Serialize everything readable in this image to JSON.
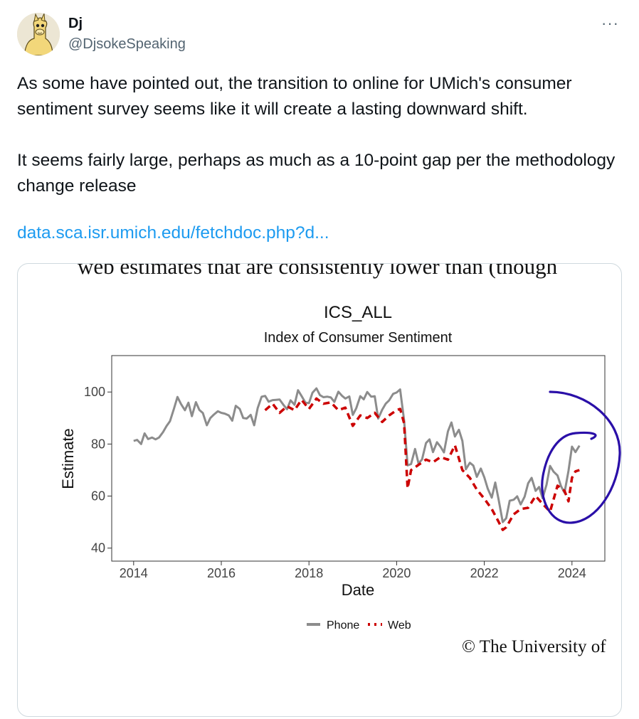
{
  "author": {
    "name": "Dj",
    "handle": "@DjsokeSpeaking"
  },
  "more_label": "···",
  "tweet": {
    "paragraphs": [
      "As some have pointed out, the transition to online for UMich's consumer sentiment survey seems like it will create a lasting downward shift.",
      "It seems fairly large, perhaps as much as a 10-point gap per the methodology change release"
    ],
    "link_text": "data.sca.isr.umich.edu/fetchdoc.php?d..."
  },
  "media": {
    "top_text": "web estimates that are consistently lower than (though",
    "copyright": "© The University of"
  },
  "colors": {
    "phone": "#8c8c8c",
    "web": "#cc0000",
    "annotation": "#2a0fa8",
    "link": "#1d9bf0"
  },
  "chart_data": {
    "type": "line",
    "title": "ICS_ALL",
    "subtitle": "Index of Consumer Sentiment",
    "xlabel": "Date",
    "ylabel": "Estimate",
    "xlim": [
      2013.5,
      2024.75
    ],
    "ylim": [
      35,
      114
    ],
    "xticks": [
      2014,
      2016,
      2018,
      2020,
      2022,
      2024
    ],
    "yticks": [
      40,
      60,
      80,
      100
    ],
    "grid": false,
    "legend": {
      "position": "bottom",
      "entries": [
        "Phone",
        "Web"
      ]
    },
    "series": [
      {
        "name": "Phone",
        "style": "solid",
        "x": [
          2014.0,
          2014.08,
          2014.17,
          2014.25,
          2014.33,
          2014.42,
          2014.5,
          2014.58,
          2014.67,
          2014.75,
          2014.83,
          2014.92,
          2015.0,
          2015.08,
          2015.17,
          2015.25,
          2015.33,
          2015.42,
          2015.5,
          2015.58,
          2015.67,
          2015.75,
          2015.83,
          2015.92,
          2016.0,
          2016.08,
          2016.17,
          2016.25,
          2016.33,
          2016.42,
          2016.5,
          2016.58,
          2016.67,
          2016.75,
          2016.83,
          2016.92,
          2017.0,
          2017.08,
          2017.17,
          2017.25,
          2017.33,
          2017.42,
          2017.5,
          2017.58,
          2017.67,
          2017.75,
          2017.83,
          2017.92,
          2018.0,
          2018.08,
          2018.17,
          2018.25,
          2018.33,
          2018.42,
          2018.5,
          2018.58,
          2018.67,
          2018.75,
          2018.83,
          2018.92,
          2019.0,
          2019.08,
          2019.17,
          2019.25,
          2019.33,
          2019.42,
          2019.5,
          2019.58,
          2019.67,
          2019.75,
          2019.83,
          2019.92,
          2020.0,
          2020.08,
          2020.17,
          2020.25,
          2020.33,
          2020.42,
          2020.5,
          2020.58,
          2020.67,
          2020.75,
          2020.83,
          2020.92,
          2021.0,
          2021.08,
          2021.17,
          2021.25,
          2021.33,
          2021.42,
          2021.5,
          2021.58,
          2021.67,
          2021.75,
          2021.83,
          2021.92,
          2022.0,
          2022.08,
          2022.17,
          2022.25,
          2022.33,
          2022.42,
          2022.5,
          2022.58,
          2022.67,
          2022.75,
          2022.83,
          2022.92,
          2023.0,
          2023.08,
          2023.17,
          2023.25,
          2023.33,
          2023.42,
          2023.5,
          2023.58,
          2023.67,
          2023.75,
          2023.83,
          2023.92,
          2024.0,
          2024.08,
          2024.17
        ],
        "values": [
          81.2,
          81.6,
          80.0,
          84.1,
          81.9,
          82.5,
          81.8,
          82.5,
          84.6,
          86.9,
          88.8,
          93.6,
          98.1,
          95.4,
          93.0,
          95.9,
          90.7,
          96.1,
          93.1,
          91.9,
          87.2,
          90.0,
          91.3,
          92.6,
          92.0,
          91.7,
          91.0,
          89.0,
          94.7,
          93.5,
          90.0,
          89.8,
          91.2,
          87.2,
          93.8,
          98.2,
          98.5,
          96.3,
          96.9,
          97.0,
          97.1,
          95.0,
          93.4,
          96.8,
          95.1,
          100.7,
          98.5,
          95.9,
          95.7,
          99.7,
          101.4,
          98.8,
          98.0,
          98.2,
          97.9,
          96.2,
          100.1,
          98.6,
          97.5,
          98.3,
          91.2,
          93.8,
          98.4,
          97.2,
          100.0,
          98.2,
          98.4,
          89.8,
          93.2,
          95.5,
          96.8,
          99.3,
          99.8,
          101.0,
          89.1,
          71.8,
          72.3,
          78.1,
          72.5,
          74.1,
          80.4,
          81.8,
          76.9,
          80.7,
          79.0,
          76.8,
          84.9,
          88.3,
          82.9,
          85.5,
          81.2,
          70.3,
          72.8,
          71.7,
          67.4,
          70.6,
          67.2,
          62.8,
          59.4,
          65.2,
          58.4,
          50.0,
          51.5,
          58.2,
          58.6,
          59.9,
          56.8,
          59.8,
          64.9,
          67.0,
          62.0,
          63.5,
          59.2,
          64.4,
          71.6,
          69.4,
          67.9,
          63.8,
          61.3,
          69.7,
          79.0,
          76.9,
          79.4
        ]
      },
      {
        "name": "Web",
        "style": "dashed",
        "x": [
          2017.0,
          2017.17,
          2017.33,
          2017.5,
          2017.67,
          2017.83,
          2018.0,
          2018.17,
          2018.33,
          2018.5,
          2018.67,
          2018.83,
          2019.0,
          2019.17,
          2019.33,
          2019.5,
          2019.67,
          2019.83,
          2020.0,
          2020.08,
          2020.17,
          2020.25,
          2020.33,
          2020.5,
          2020.67,
          2020.83,
          2021.0,
          2021.17,
          2021.33,
          2021.5,
          2021.67,
          2021.83,
          2022.0,
          2022.17,
          2022.33,
          2022.42,
          2022.5,
          2022.67,
          2022.83,
          2023.0,
          2023.17,
          2023.33,
          2023.5,
          2023.67,
          2023.83,
          2023.92,
          2024.0,
          2024.08,
          2024.17
        ],
        "values": [
          93.0,
          95.5,
          92.0,
          94.5,
          93.0,
          97.0,
          93.5,
          97.5,
          95.5,
          96.0,
          93.0,
          94.0,
          87.0,
          91.0,
          90.0,
          92.0,
          88.5,
          91.0,
          93.0,
          93.5,
          88.0,
          63.0,
          70.0,
          72.0,
          74.0,
          73.0,
          75.0,
          74.0,
          79.5,
          70.0,
          67.0,
          62.5,
          59.0,
          55.0,
          50.0,
          47.0,
          48.0,
          53.0,
          55.0,
          55.5,
          60.0,
          57.0,
          54.0,
          64.0,
          62.0,
          58.0,
          67.0,
          69.5,
          70.0
        ]
      }
    ]
  }
}
